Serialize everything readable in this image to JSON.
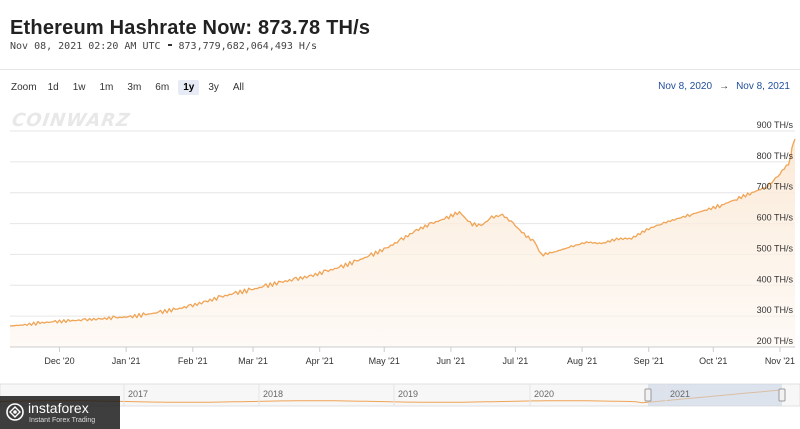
{
  "header": {
    "title": "Ethereum Hashrate Now: 873.78 TH/s",
    "timestamp": "Nov 08, 2021 02:20 AM UTC",
    "exact_hashrate": "873,779,682,064,493 H/s"
  },
  "toolbar": {
    "zoom_label": "Zoom",
    "buttons": [
      "1d",
      "1w",
      "1m",
      "3m",
      "6m",
      "1y",
      "3y",
      "All"
    ],
    "active": "1y",
    "range_from": "Nov 8, 2020",
    "range_arrow": "→",
    "range_to": "Nov 8, 2021"
  },
  "logo_text": "COINWARZ",
  "colors": {
    "line": "#f0a455",
    "fill": "#fdf1e5",
    "accent": "#1f4e9a",
    "navigator_mask": "#c9d3e6"
  },
  "chart_data": {
    "type": "area",
    "title": "Ethereum Hashrate Now: 873.78 TH/s",
    "ylabel": "",
    "xlabel": "",
    "y_unit": "TH/s",
    "ylim": [
      200,
      900
    ],
    "yticks": [
      200,
      300,
      400,
      500,
      600,
      700,
      800,
      900
    ],
    "ytick_labels": [
      "200 TH/s",
      "300 TH/s",
      "400 TH/s",
      "500 TH/s",
      "600 TH/s",
      "700 TH/s",
      "800 TH/s",
      "900 TH/s"
    ],
    "xlim": [
      "2020-11-08",
      "2021-11-08"
    ],
    "xticks": [
      {
        "date": "2020-12-01",
        "label": "Dec '20"
      },
      {
        "date": "2021-01-01",
        "label": "Jan '21"
      },
      {
        "date": "2021-02-01",
        "label": "Feb '21"
      },
      {
        "date": "2021-03-01",
        "label": "Mar '21"
      },
      {
        "date": "2021-04-01",
        "label": "Apr '21"
      },
      {
        "date": "2021-05-01",
        "label": "May '21"
      },
      {
        "date": "2021-06-01",
        "label": "Jun '21"
      },
      {
        "date": "2021-07-01",
        "label": "Jul '21"
      },
      {
        "date": "2021-08-01",
        "label": "Aug '21"
      },
      {
        "date": "2021-09-01",
        "label": "Sep '21"
      },
      {
        "date": "2021-10-01",
        "label": "Oct '21"
      },
      {
        "date": "2021-11-01",
        "label": "Nov '21"
      }
    ],
    "grid": true,
    "y_axis_side": "right",
    "series": [
      {
        "points": [
          [
            "2020-11-08",
            268
          ],
          [
            "2020-11-15",
            272
          ],
          [
            "2020-11-22",
            278
          ],
          [
            "2020-11-29",
            282
          ],
          [
            "2020-12-06",
            285
          ],
          [
            "2020-12-13",
            288
          ],
          [
            "2020-12-20",
            291
          ],
          [
            "2020-12-27",
            295
          ],
          [
            "2021-01-03",
            298
          ],
          [
            "2021-01-10",
            305
          ],
          [
            "2021-01-17",
            313
          ],
          [
            "2021-01-24",
            322
          ],
          [
            "2021-01-31",
            333
          ],
          [
            "2021-02-07",
            347
          ],
          [
            "2021-02-14",
            362
          ],
          [
            "2021-02-21",
            375
          ],
          [
            "2021-02-28",
            385
          ],
          [
            "2021-03-07",
            398
          ],
          [
            "2021-03-14",
            410
          ],
          [
            "2021-03-21",
            420
          ],
          [
            "2021-03-28",
            430
          ],
          [
            "2021-04-04",
            445
          ],
          [
            "2021-04-11",
            460
          ],
          [
            "2021-04-18",
            478
          ],
          [
            "2021-04-25",
            498
          ],
          [
            "2021-05-02",
            520
          ],
          [
            "2021-05-09",
            548
          ],
          [
            "2021-05-16",
            578
          ],
          [
            "2021-05-23",
            600
          ],
          [
            "2021-05-30",
            618
          ],
          [
            "2021-06-05",
            638
          ],
          [
            "2021-06-10",
            600
          ],
          [
            "2021-06-15",
            593
          ],
          [
            "2021-06-20",
            620
          ],
          [
            "2021-06-25",
            628
          ],
          [
            "2021-06-30",
            600
          ],
          [
            "2021-07-05",
            565
          ],
          [
            "2021-07-10",
            540
          ],
          [
            "2021-07-13",
            498
          ],
          [
            "2021-07-20",
            510
          ],
          [
            "2021-07-27",
            525
          ],
          [
            "2021-08-03",
            540
          ],
          [
            "2021-08-10",
            535
          ],
          [
            "2021-08-17",
            550
          ],
          [
            "2021-08-24",
            552
          ],
          [
            "2021-08-31",
            580
          ],
          [
            "2021-09-07",
            600
          ],
          [
            "2021-09-14",
            615
          ],
          [
            "2021-09-21",
            630
          ],
          [
            "2021-09-28",
            645
          ],
          [
            "2021-10-05",
            660
          ],
          [
            "2021-10-12",
            680
          ],
          [
            "2021-10-19",
            700
          ],
          [
            "2021-10-26",
            720
          ],
          [
            "2021-10-29",
            740
          ],
          [
            "2021-11-01",
            762
          ],
          [
            "2021-11-03",
            780
          ],
          [
            "2021-11-05",
            790
          ],
          [
            "2021-11-06",
            820
          ],
          [
            "2021-11-07",
            855
          ],
          [
            "2021-11-08",
            874
          ]
        ]
      }
    ],
    "navigator": {
      "year_labels": [
        "2017",
        "2018",
        "2019",
        "2020",
        "2021"
      ],
      "selected_range": [
        "2020-11-08",
        "2021-11-08"
      ]
    }
  },
  "watermark": {
    "name": "instaforex",
    "tagline": "Instant Forex Trading"
  }
}
